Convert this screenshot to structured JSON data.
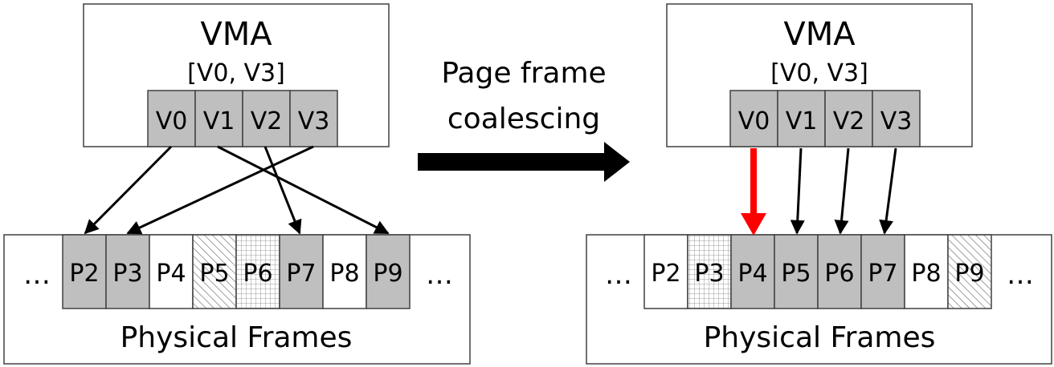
{
  "left": {
    "vma_title": "VMA",
    "vma_range": "[V0, V3]",
    "virtual_pages": [
      "V0",
      "V1",
      "V2",
      "V3"
    ],
    "ellipsis": "…",
    "physical_frames": [
      {
        "label": "P2",
        "fill": "gray"
      },
      {
        "label": "P3",
        "fill": "gray"
      },
      {
        "label": "P4",
        "fill": "white"
      },
      {
        "label": "P5",
        "fill": "hatch"
      },
      {
        "label": "P6",
        "fill": "grid"
      },
      {
        "label": "P7",
        "fill": "gray"
      },
      {
        "label": "P8",
        "fill": "white"
      },
      {
        "label": "P9",
        "fill": "gray"
      }
    ],
    "frames_label": "Physical Frames",
    "mappings": [
      {
        "from": "V0",
        "to": "P2"
      },
      {
        "from": "V1",
        "to": "P9"
      },
      {
        "from": "V2",
        "to": "P7"
      },
      {
        "from": "V3",
        "to": "P3"
      }
    ]
  },
  "transition": {
    "label_line1": "Page frame",
    "label_line2": "coalescing"
  },
  "right": {
    "vma_title": "VMA",
    "vma_range": "[V0, V3]",
    "virtual_pages": [
      "V0",
      "V1",
      "V2",
      "V3"
    ],
    "ellipsis": "…",
    "physical_frames": [
      {
        "label": "P2",
        "fill": "white"
      },
      {
        "label": "P3",
        "fill": "grid"
      },
      {
        "label": "P4",
        "fill": "gray"
      },
      {
        "label": "P5",
        "fill": "gray"
      },
      {
        "label": "P6",
        "fill": "gray"
      },
      {
        "label": "P7",
        "fill": "gray"
      },
      {
        "label": "P8",
        "fill": "white"
      },
      {
        "label": "P9",
        "fill": "hatch"
      }
    ],
    "frames_label": "Physical Frames",
    "mappings": [
      {
        "from": "V0",
        "to": "P4",
        "highlight": true
      },
      {
        "from": "V1",
        "to": "P5"
      },
      {
        "from": "V2",
        "to": "P6"
      },
      {
        "from": "V3",
        "to": "P7"
      }
    ]
  },
  "colors": {
    "page_gray": "#bfbfbf",
    "outline": "#404040",
    "arrow": "#000000",
    "highlight_arrow": "#ff0000"
  }
}
